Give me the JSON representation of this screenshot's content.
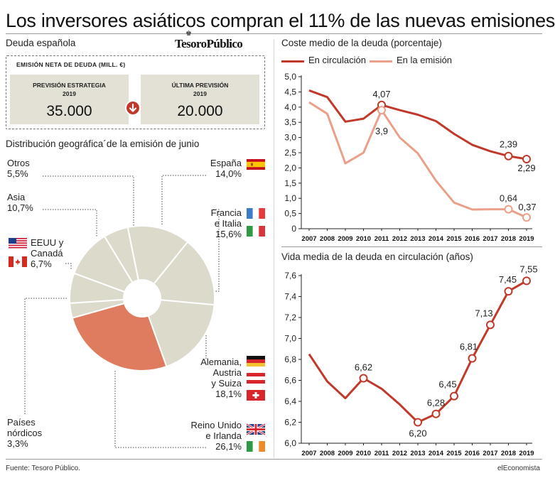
{
  "title": "Los inversores asiáticos compran el 11% de las nuevas emisiones",
  "debt": {
    "section_title": "Deuda española",
    "logo": "TesoroPúblico",
    "box_title": "EMISIÓN NETA DE DEUDA (MILL. €)",
    "cards": [
      {
        "label_line1": "PREVISIÓN ESTRATEGIA",
        "label_line2": "2019",
        "value": "35.000"
      },
      {
        "label_line1": "ÚLTIMA PREVISIÓN",
        "label_line2": "2019",
        "value": "20.000"
      }
    ]
  },
  "pie": {
    "section_title": "Distribución geográfica´de la emisión de junio",
    "base_color": "#dcdacb",
    "highlight_color": "#df7b5e",
    "labels": [
      {
        "name_lines": [
          "Otros"
        ],
        "value": "5,5%"
      },
      {
        "name_lines": [
          "Asia"
        ],
        "value": "10,7%"
      },
      {
        "name_lines": [
          "EEUU y",
          "Canadá"
        ],
        "value": "6,7%"
      },
      {
        "name_lines": [
          "Países",
          "nórdicos"
        ],
        "value": "3,3%"
      },
      {
        "name_lines": [
          "España"
        ],
        "value": "14,0%"
      },
      {
        "name_lines": [
          "Francia",
          "e Italia"
        ],
        "value": "15,6%"
      },
      {
        "name_lines": [
          "Alemania,",
          "Austria",
          "y Suiza"
        ],
        "value": "18,1%"
      },
      {
        "name_lines": [
          "Reino Unido",
          "e Irlanda"
        ],
        "value": "26,1%"
      }
    ]
  },
  "chart_data": [
    {
      "type": "pie",
      "title": "Distribución geográfica´de la emisión de junio",
      "donut": true,
      "slices": [
        {
          "name": "España",
          "value": 14.0,
          "highlight": false
        },
        {
          "name": "Francia e Italia",
          "value": 15.6,
          "highlight": false
        },
        {
          "name": "Alemania, Austria y Suiza",
          "value": 18.1,
          "highlight": false
        },
        {
          "name": "Reino Unido e Irlanda",
          "value": 26.1,
          "highlight": true
        },
        {
          "name": "Países nórdicos",
          "value": 3.3,
          "highlight": false
        },
        {
          "name": "EEUU y Canadá",
          "value": 6.7,
          "highlight": false
        },
        {
          "name": "Asia",
          "value": 10.7,
          "highlight": false
        },
        {
          "name": "Otros",
          "value": 5.5,
          "highlight": false
        }
      ]
    },
    {
      "type": "line",
      "title": "Coste medio de la deuda (porcentaje)",
      "x": [
        "2007",
        "2008",
        "2009",
        "2010",
        "2011",
        "2012",
        "2013",
        "2014",
        "2015",
        "2016",
        "2017",
        "2018",
        "2019"
      ],
      "ylim": [
        0,
        5.0
      ],
      "yticks": [
        "0",
        "0,5",
        "1,0",
        "1,5",
        "2,0",
        "2,5",
        "3,0",
        "3,5",
        "4,0",
        "4,5",
        "5,0"
      ],
      "grid": false,
      "legend": "top-left",
      "series": [
        {
          "name": "En circulación",
          "color": "#c0392b",
          "values": [
            4.55,
            4.33,
            3.52,
            3.62,
            4.07,
            3.9,
            3.75,
            3.54,
            3.12,
            2.76,
            2.55,
            2.39,
            2.29
          ],
          "markers": [
            4,
            11,
            12
          ],
          "labels": {
            "4": "4,07",
            "11": "2,39",
            "12": "2,29"
          }
        },
        {
          "name": "En la emisión",
          "color": "#eaa088",
          "values": [
            4.16,
            3.78,
            2.15,
            2.5,
            3.9,
            3.0,
            2.48,
            1.58,
            0.86,
            0.63,
            0.64,
            0.64,
            0.37
          ],
          "markers": [
            4,
            11,
            12
          ],
          "labels": {
            "4": "3,9",
            "11": "0,64",
            "12": "0,37"
          }
        }
      ]
    },
    {
      "type": "line",
      "title": "Vida media de la deuda en circulación (años)",
      "x": [
        "2007",
        "2008",
        "2009",
        "2010",
        "2011",
        "2012",
        "2013",
        "2014",
        "2015",
        "2016",
        "2017",
        "2018",
        "2019"
      ],
      "ylim": [
        6.0,
        7.6
      ],
      "yticks": [
        "6,0",
        "6,2",
        "6,4",
        "6,6",
        "6,8",
        "7,0",
        "7,2",
        "7,4",
        "7,6"
      ],
      "grid": false,
      "series": [
        {
          "color": "#c0392b",
          "values": [
            6.85,
            6.59,
            6.43,
            6.62,
            6.52,
            6.37,
            6.2,
            6.28,
            6.45,
            6.81,
            7.13,
            7.45,
            7.55
          ],
          "markers": [
            3,
            6,
            7,
            8,
            9,
            10,
            11,
            12
          ],
          "labels": {
            "3": "6,62",
            "6": "6,20",
            "7": "6,28",
            "8": "6,45",
            "9": "6,81",
            "10": "7,13",
            "11": "7,45",
            "12": "7,55"
          }
        }
      ]
    }
  ],
  "footer": {
    "source": "Fuente: Tesoro Público.",
    "brand": "elEconomista"
  }
}
